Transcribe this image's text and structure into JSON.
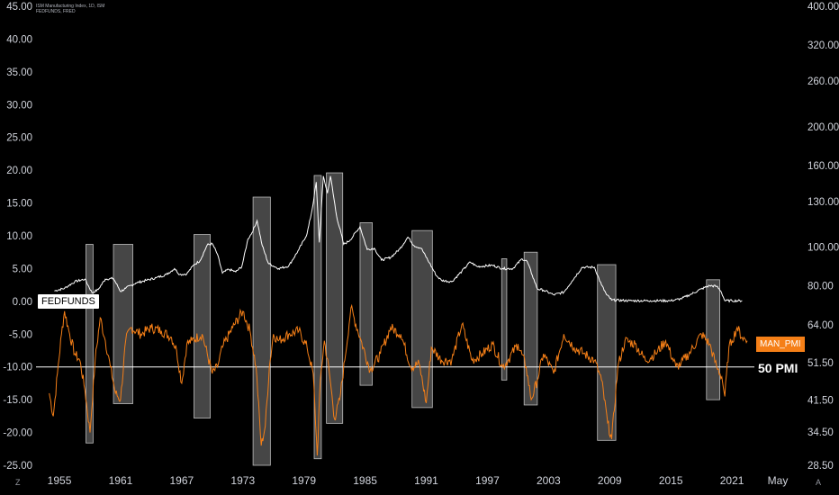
{
  "header": {
    "line1": "ISM Manufacturing Index, 1D, ISM",
    "line2": "FEDFUNDS, FRED"
  },
  "corner": {
    "left": "Z",
    "right": "A"
  },
  "tags": {
    "fedfunds": "FEDFUNDS",
    "man_pmi": "MAN_PMI",
    "pmi50": "50 PMI"
  },
  "colors": {
    "background": "#000000",
    "fedfunds": "#ffffff",
    "pmi": "#f57f17",
    "recession_bar": "#808080"
  },
  "chart_data": {
    "type": "line",
    "left_axis": {
      "ticks": [
        "45.00",
        "40.00",
        "35.00",
        "30.00",
        "25.00",
        "20.00",
        "15.00",
        "10.00",
        "5.00",
        "0.00",
        "-5.00",
        "-10.00",
        "-15.00",
        "-20.00",
        "-25.00"
      ],
      "range": [
        -25,
        45
      ]
    },
    "right_axis": {
      "ticks": [
        "400.00",
        "320.00",
        "260.00",
        "200.00",
        "160.00",
        "130.00",
        "100.00",
        "80.00",
        "64.00",
        "51.50",
        "41.50",
        "34.50",
        "28.50"
      ],
      "scale": "log"
    },
    "x_ticks": [
      "1955",
      "1961",
      "1967",
      "1973",
      "1979",
      "1985",
      "1991",
      "1997",
      "2003",
      "2009",
      "2015",
      "2021",
      "May"
    ],
    "horizontal_line": {
      "label": "50 PMI",
      "value": -10
    },
    "recession_bars": [
      {
        "x0": 1957.6,
        "x1": 1958.3,
        "y0": 8.7,
        "y1": -21.6
      },
      {
        "x0": 1960.3,
        "x1": 1962.2,
        "y0": 8.7,
        "y1": -15.6
      },
      {
        "x0": 1968.2,
        "x1": 1969.8,
        "y0": 10.2,
        "y1": -17.8
      },
      {
        "x0": 1974.0,
        "x1": 1975.7,
        "y0": 15.9,
        "y1": -25.0
      },
      {
        "x0": 1980.0,
        "x1": 1980.7,
        "y0": 19.2,
        "y1": -24.0
      },
      {
        "x0": 1981.2,
        "x1": 1982.8,
        "y0": 19.6,
        "y1": -18.6
      },
      {
        "x0": 1984.5,
        "x1": 1985.7,
        "y0": 12.0,
        "y1": -12.8
      },
      {
        "x0": 1989.6,
        "x1": 1991.6,
        "y0": 10.8,
        "y1": -16.2
      },
      {
        "x0": 1998.4,
        "x1": 1998.9,
        "y0": 6.5,
        "y1": -12.0
      },
      {
        "x0": 2000.6,
        "x1": 2001.9,
        "y0": 7.5,
        "y1": -15.8
      },
      {
        "x0": 2007.8,
        "x1": 2009.6,
        "y0": 5.6,
        "y1": -21.2
      },
      {
        "x0": 2018.5,
        "x1": 2019.8,
        "y0": 3.3,
        "y1": -15.0
      }
    ],
    "series": [
      {
        "name": "FEDFUNDS",
        "x": [
          1954.5,
          1955.5,
          1956.5,
          1957.5,
          1958.2,
          1958.8,
          1959.5,
          1960.3,
          1961.0,
          1961.5,
          1962.5,
          1963.5,
          1964.5,
          1965.5,
          1966.3,
          1966.8,
          1967.5,
          1968.2,
          1968.8,
          1969.5,
          1970.0,
          1970.5,
          1971.0,
          1971.6,
          1972.3,
          1972.9,
          1973.5,
          1973.9,
          1974.4,
          1974.9,
          1975.5,
          1976.5,
          1977.5,
          1978.5,
          1979.3,
          1979.8,
          1980.2,
          1980.5,
          1980.9,
          1981.3,
          1981.6,
          1982.2,
          1982.9,
          1983.5,
          1984.5,
          1985.2,
          1985.9,
          1986.6,
          1987.5,
          1988.4,
          1989.2,
          1989.8,
          1990.5,
          1991.3,
          1992.0,
          1992.5,
          1993.5,
          1994.5,
          1995.3,
          1996.0,
          1997.5,
          1998.5,
          1999.5,
          2000.4,
          2000.9,
          2001.4,
          2001.9,
          2002.5,
          2003.5,
          2004.5,
          2005.3,
          2006.3,
          2007.5,
          2008.2,
          2008.7,
          2009.2,
          2011.0,
          2013.0,
          2015.0,
          2016.0,
          2017.0,
          2018.0,
          2018.8,
          2019.5,
          2019.9,
          2020.3,
          2021.0,
          2022.0
        ],
        "values": [
          1.6,
          2.0,
          3.0,
          3.4,
          1.3,
          1.8,
          3.4,
          3.5,
          1.5,
          2.0,
          2.8,
          3.2,
          3.6,
          4.1,
          5.0,
          4.1,
          4.2,
          5.6,
          6.2,
          8.6,
          8.8,
          7.2,
          4.3,
          4.9,
          4.5,
          5.3,
          9.5,
          10.5,
          12.3,
          8.5,
          5.8,
          5.0,
          5.4,
          7.9,
          10.3,
          14.0,
          18.2,
          9.0,
          19.1,
          16.5,
          19.1,
          13.0,
          8.7,
          9.3,
          11.4,
          7.9,
          8.1,
          6.3,
          6.7,
          8.0,
          9.8,
          8.5,
          8.1,
          5.9,
          3.9,
          3.2,
          3.0,
          4.6,
          6.0,
          5.3,
          5.5,
          5.0,
          5.0,
          6.5,
          6.1,
          4.0,
          1.9,
          1.7,
          1.0,
          1.4,
          3.1,
          5.2,
          5.2,
          2.5,
          1.0,
          0.2,
          0.1,
          0.1,
          0.1,
          0.4,
          1.1,
          1.9,
          2.4,
          2.3,
          1.6,
          0.1,
          0.1,
          0.1
        ]
      },
      {
        "name": "MAN_PMI",
        "x": [
          1954.0,
          1954.4,
          1954.8,
          1955.2,
          1955.5,
          1956.0,
          1956.5,
          1957.0,
          1957.5,
          1958.0,
          1958.5,
          1959.0,
          1959.5,
          1960.0,
          1960.5,
          1961.0,
          1961.5,
          1962.0,
          1963.0,
          1964.0,
          1965.0,
          1966.0,
          1966.5,
          1967.0,
          1967.5,
          1968.0,
          1969.0,
          1970.0,
          1970.5,
          1971.0,
          1972.0,
          1973.0,
          1973.7,
          1974.3,
          1974.8,
          1975.2,
          1975.6,
          1976.0,
          1976.5,
          1977.5,
          1978.5,
          1979.3,
          1979.9,
          1980.3,
          1980.6,
          1981.0,
          1981.5,
          1982.0,
          1982.5,
          1983.0,
          1983.6,
          1984.5,
          1985.5,
          1986.5,
          1987.5,
          1988.5,
          1989.5,
          1990.3,
          1991.0,
          1991.5,
          1992.5,
          1993.5,
          1994.5,
          1995.5,
          1996.5,
          1997.5,
          1998.5,
          1999.0,
          2000.0,
          2000.8,
          2001.3,
          2001.9,
          2002.5,
          2003.5,
          2004.5,
          2005.5,
          2006.5,
          2007.5,
          2008.2,
          2008.8,
          2009.2,
          2009.8,
          2010.5,
          2011.5,
          2012.5,
          2013.5,
          2014.5,
          2015.5,
          2016.0,
          2017.0,
          2018.0,
          2018.8,
          2019.5,
          2020.0,
          2020.3,
          2020.7,
          2021.0,
          2021.5,
          2022.0,
          2022.5
        ],
        "values": [
          -14.0,
          -17.5,
          -11.0,
          -5.0,
          -1.5,
          -5.0,
          -8.0,
          -9.0,
          -13.5,
          -20.0,
          -9.0,
          -2.5,
          -6.0,
          -10.0,
          -14.0,
          -15.0,
          -6.0,
          -4.0,
          -5.0,
          -4.0,
          -4.5,
          -5.5,
          -7.5,
          -12.5,
          -6.5,
          -6.0,
          -5.0,
          -11.0,
          -10.0,
          -7.0,
          -4.0,
          -1.5,
          -4.5,
          -10.0,
          -22.0,
          -19.0,
          -10.0,
          -5.0,
          -6.0,
          -5.0,
          -4.5,
          -7.0,
          -11.0,
          -23.5,
          -12.0,
          -6.0,
          -11.0,
          -18.0,
          -15.0,
          -9.0,
          -1.0,
          -5.5,
          -10.5,
          -8.0,
          -4.0,
          -5.0,
          -10.0,
          -9.5,
          -15.5,
          -7.0,
          -9.0,
          -9.0,
          -3.5,
          -9.0,
          -8.0,
          -6.5,
          -10.0,
          -9.0,
          -6.5,
          -10.0,
          -15.0,
          -12.0,
          -8.0,
          -11.0,
          -5.0,
          -7.0,
          -8.0,
          -9.0,
          -12.0,
          -18.5,
          -21.0,
          -10.0,
          -6.0,
          -6.5,
          -9.0,
          -8.0,
          -6.0,
          -10.0,
          -9.5,
          -7.5,
          -5.0,
          -6.5,
          -10.0,
          -11.5,
          -14.5,
          -7.0,
          -6.0,
          -4.0,
          -5.5,
          -6.0
        ]
      }
    ]
  }
}
